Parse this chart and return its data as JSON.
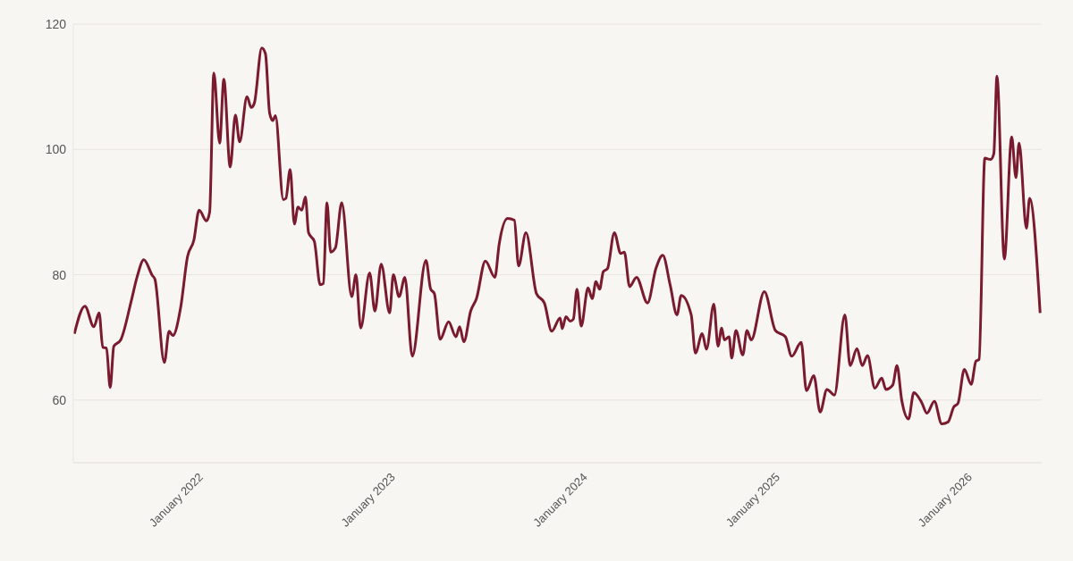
{
  "chart_data": {
    "type": "line",
    "x": [
      "2021-05-05",
      "2021-05-25",
      "2021-06-11",
      "2021-06-21",
      "2021-06-28",
      "2021-07-05",
      "2021-07-12",
      "2021-07-19",
      "2021-08-01",
      "2021-08-21",
      "2021-09-01",
      "2021-09-14",
      "2021-09-30",
      "2021-10-05",
      "2021-10-23",
      "2021-11-01",
      "2021-11-08",
      "2021-11-23",
      "2021-12-06",
      "2021-12-18",
      "2021-12-28",
      "2022-01-11",
      "2022-01-17",
      "2022-01-25",
      "2022-02-05",
      "2022-02-13",
      "2022-02-25",
      "2022-03-07",
      "2022-03-15",
      "2022-03-29",
      "2022-04-06",
      "2022-04-12",
      "2022-04-26",
      "2022-05-03",
      "2022-05-11",
      "2022-05-17",
      "2022-05-22",
      "2022-06-06",
      "2022-06-11",
      "2022-06-19",
      "2022-06-27",
      "2022-07-04",
      "2022-07-11",
      "2022-07-18",
      "2022-07-24",
      "2022-08-04",
      "2022-08-15",
      "2022-08-21",
      "2022-08-28",
      "2022-09-04",
      "2022-09-13",
      "2022-09-25",
      "2022-10-14",
      "2022-10-22",
      "2022-10-31",
      "2022-11-17",
      "2022-11-27",
      "2022-12-09",
      "2022-12-25",
      "2023-01-01",
      "2023-01-12",
      "2023-01-23",
      "2023-02-06",
      "2023-03-04",
      "2023-03-13",
      "2023-03-20",
      "2023-03-31",
      "2023-04-16",
      "2023-04-30",
      "2023-05-07",
      "2023-05-15",
      "2023-05-28",
      "2023-06-08",
      "2023-06-25",
      "2023-07-13",
      "2023-07-21",
      "2023-08-06",
      "2023-08-19",
      "2023-08-27",
      "2023-09-10",
      "2023-09-30",
      "2023-10-15",
      "2023-10-29",
      "2023-11-14",
      "2023-11-18",
      "2023-11-25",
      "2023-12-03",
      "2023-12-09",
      "2023-12-16",
      "2023-12-24",
      "2024-01-06",
      "2024-01-14",
      "2024-01-21",
      "2024-01-28",
      "2024-02-04",
      "2024-02-12",
      "2024-02-25",
      "2024-03-08",
      "2024-03-15",
      "2024-03-25",
      "2024-04-07",
      "2024-04-28",
      "2024-05-14",
      "2024-05-27",
      "2024-06-10",
      "2024-06-23",
      "2024-07-01",
      "2024-07-20",
      "2024-07-28",
      "2024-08-10",
      "2024-08-18",
      "2024-09-01",
      "2024-09-09",
      "2024-09-16",
      "2024-09-21",
      "2024-09-30",
      "2024-10-05",
      "2024-10-13",
      "2024-10-26",
      "2024-11-03",
      "2024-11-11",
      "2024-12-06",
      "2024-12-27",
      "2025-01-15",
      "2025-01-27",
      "2025-02-14",
      "2025-02-24",
      "2025-03-10",
      "2025-03-22",
      "2025-04-04",
      "2025-04-18",
      "2025-05-08",
      "2025-05-18",
      "2025-05-31",
      "2025-06-10",
      "2025-06-20",
      "2025-07-04",
      "2025-07-17",
      "2025-07-25",
      "2025-08-07",
      "2025-08-15",
      "2025-08-24",
      "2025-09-06",
      "2025-09-16",
      "2025-10-01",
      "2025-10-11",
      "2025-10-25",
      "2025-11-08",
      "2025-11-20",
      "2025-12-01",
      "2025-12-09",
      "2025-12-21",
      "2026-01-03",
      "2026-01-12",
      "2026-01-18",
      "2026-01-29",
      "2026-02-09",
      "2026-02-15",
      "2026-02-21",
      "2026-03-07",
      "2026-03-21",
      "2026-03-29",
      "2026-04-04",
      "2026-04-18",
      "2026-04-24",
      "2026-05-14"
    ],
    "series": [
      {
        "color": "#7a1a2e",
        "values": [
          70.6,
          75.0,
          71.7,
          73.9,
          68.4,
          68.3,
          62.0,
          68.6,
          69.6,
          75.8,
          79.6,
          82.4,
          79.9,
          79.3,
          66.0,
          71.0,
          70.3,
          74.8,
          82.9,
          85.5,
          90.3,
          88.6,
          90.0,
          112.2,
          101.0,
          111.2,
          97.2,
          105.5,
          101.2,
          108.4,
          106.7,
          107.4,
          116.2,
          115.3,
          105.8,
          104.6,
          105.4,
          92.0,
          92.2,
          96.8,
          88.1,
          90.8,
          90.3,
          92.4,
          86.7,
          85.3,
          78.4,
          78.6,
          91.5,
          83.6,
          84.3,
          91.5,
          76.5,
          80.0,
          71.5,
          80.3,
          74.2,
          81.7,
          73.9,
          80.0,
          76.5,
          79.6,
          67.0,
          82.3,
          77.7,
          77.0,
          69.7,
          72.5,
          70.1,
          71.7,
          69.3,
          74.2,
          76.2,
          82.2,
          79.6,
          84.8,
          89.0,
          88.7,
          81.4,
          86.7,
          77.0,
          75.5,
          71.0,
          73.1,
          71.4,
          73.3,
          72.6,
          72.9,
          77.7,
          71.8,
          77.9,
          76.2,
          78.9,
          77.7,
          80.5,
          81.0,
          86.7,
          83.4,
          83.6,
          78.1,
          79.6,
          75.5,
          81.0,
          83.1,
          78.4,
          73.6,
          76.7,
          73.6,
          67.5,
          70.6,
          68.1,
          75.3,
          68.6,
          71.5,
          69.6,
          70.1,
          66.7,
          71.1,
          67.2,
          71.1,
          69.6,
          77.3,
          71.1,
          70.1,
          67.0,
          69.2,
          61.5,
          63.9,
          58.1,
          61.7,
          60.8,
          73.6,
          65.5,
          68.2,
          65.5,
          67.1,
          61.9,
          63.5,
          61.7,
          62.4,
          65.5,
          60.0,
          57.0,
          61.2,
          59.6,
          57.9,
          59.8,
          56.2,
          56.5,
          58.9,
          59.5,
          64.9,
          62.5,
          66.2,
          66.5,
          98.6,
          98.4,
          99.3,
          111.7,
          82.5,
          102.0,
          95.5,
          101.0,
          87.4,
          92.2,
          73.9
        ]
      }
    ],
    "xlim": [
      "2021-05-03",
      "2026-05-17"
    ],
    "xticks": [
      {
        "value": "2022-01-01",
        "label": "January 2022"
      },
      {
        "value": "2023-01-01",
        "label": "January 2023"
      },
      {
        "value": "2024-01-01",
        "label": "January 2024"
      },
      {
        "value": "2025-01-01",
        "label": "January 2025"
      },
      {
        "value": "2026-01-01",
        "label": "January 2026"
      }
    ],
    "ylim": [
      50,
      120
    ],
    "yticks": [
      {
        "value": 50,
        "label": null
      },
      60,
      80,
      100,
      120
    ],
    "grid": "y",
    "marker": "none",
    "line_style": "solid"
  }
}
